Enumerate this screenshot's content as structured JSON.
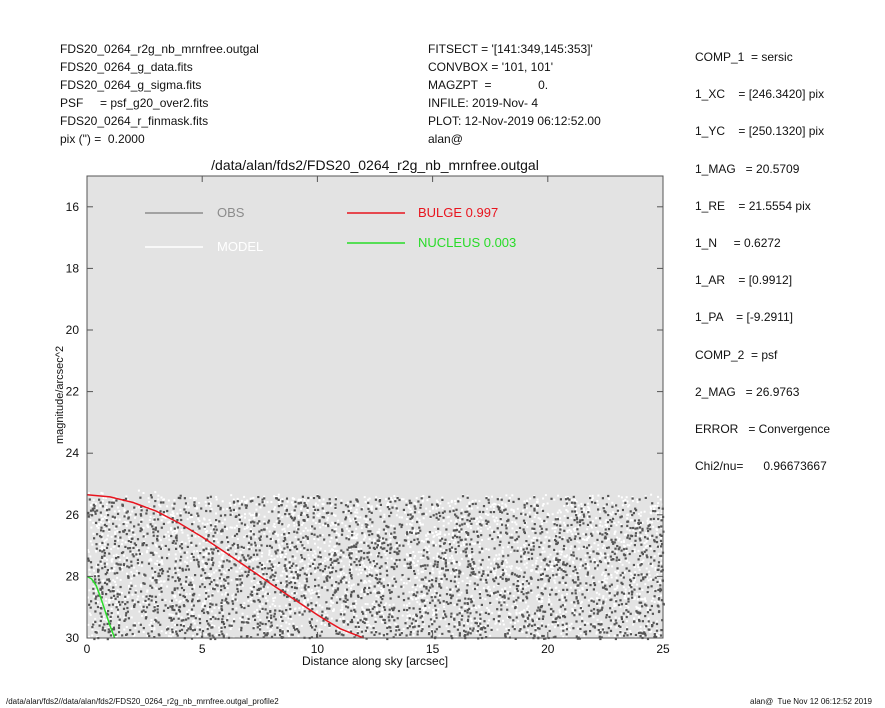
{
  "header_left": [
    "FDS20_0264_r2g_nb_mrnfree.outgal",
    "FDS20_0264_g_data.fits",
    "FDS20_0264_g_sigma.fits",
    "PSF     = psf_g20_over2.fits",
    "FDS20_0264_r_finmask.fits",
    "pix (\") =  0.2000"
  ],
  "header_mid": [
    "FITSECT = '[141:349,145:353]'",
    "CONVBOX = '101, 101'",
    "MAGZPT  =              0.",
    "INFILE: 2019-Nov- 4",
    "PLOT: 12-Nov-2019 06:12:52.00",
    "alan@"
  ],
  "header_right": [
    "COMP_1  = sersic",
    "",
    "1_XC    = [246.3420] pix",
    "",
    "1_YC    = [250.1320] pix",
    "",
    "1_MAG   = 20.5709",
    "",
    "1_RE    = 21.5554 pix",
    "",
    "1_N     = 0.6272",
    "",
    "1_AR    = [0.9912]",
    "",
    "1_PA    = [-9.2911]",
    "",
    "COMP_2  = psf",
    "",
    "2_MAG   = 26.9763",
    "",
    "ERROR   = Convergence",
    "",
    "Chi2/nu=      0.96673667"
  ],
  "footer": {
    "left": "/data/alan/fds2//data/alan/fds2/FDS20_0264_r2g_nb_mrnfree.outgal_profile2",
    "right": "alan@  Tue Nov 12 06:12:52 2019"
  },
  "chart_data": {
    "type": "scatter",
    "title": "/data/alan/fds2/FDS20_0264_r2g_nb_mrnfree.outgal",
    "xlabel": "Distance along sky [arcsec]",
    "ylabel": "magnitude/arcsec^2",
    "xlim": [
      0,
      25
    ],
    "ylim": [
      30,
      15
    ],
    "y_inverted": true,
    "x_ticks": [
      0,
      5,
      10,
      15,
      20,
      25
    ],
    "y_ticks": [
      16,
      18,
      20,
      22,
      24,
      26,
      28,
      30
    ],
    "plot_background": "#e3e3e3",
    "legend": [
      {
        "label": "OBS",
        "color": "#8c8c8c"
      },
      {
        "label": "MODEL",
        "color": "#ffffff"
      },
      {
        "label": "BULGE  0.997",
        "color": "#e8141e"
      },
      {
        "label": "NUCLEUS  0.003",
        "color": "#28dc28"
      }
    ],
    "series": [
      {
        "name": "OBS",
        "kind": "scatter",
        "color": "#555555",
        "x_range": [
          0,
          25
        ],
        "y_range": [
          25.3,
          30
        ],
        "note_points": "dense noisy cloud"
      },
      {
        "name": "MODEL",
        "kind": "scatter",
        "color": "#ffffff",
        "x_range": [
          0,
          25
        ],
        "y_range": [
          25.3,
          30
        ]
      },
      {
        "name": "BULGE  0.997",
        "kind": "line",
        "color": "#e8141e",
        "x": [
          0,
          1,
          2,
          3,
          4,
          5,
          6,
          7,
          8,
          9,
          10,
          10.5,
          11,
          11.5,
          12
        ],
        "y": [
          25.35,
          25.42,
          25.6,
          25.88,
          26.27,
          26.72,
          27.22,
          27.73,
          28.25,
          28.75,
          29.25,
          29.48,
          29.7,
          29.85,
          30.0
        ]
      },
      {
        "name": "NUCLEUS  0.003",
        "kind": "line",
        "color": "#28dc28",
        "x": [
          0,
          0.2,
          0.4,
          0.6,
          0.8,
          1.0,
          1.2
        ],
        "y": [
          28.0,
          28.08,
          28.3,
          28.7,
          29.15,
          29.6,
          30.0
        ]
      }
    ]
  }
}
